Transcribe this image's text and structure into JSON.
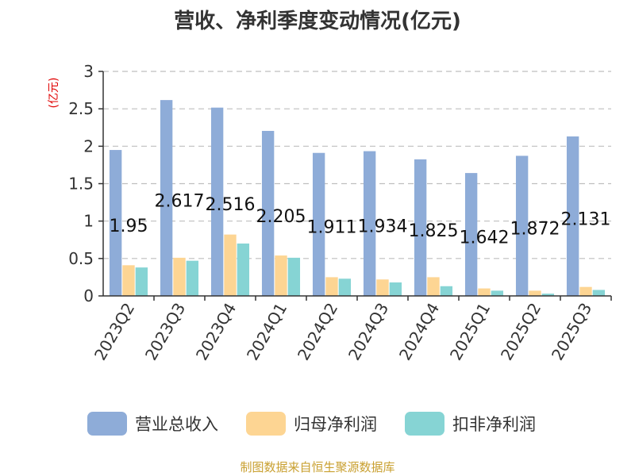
{
  "chart_data": {
    "type": "bar",
    "title": "营收、净利季度变动情况(亿元)",
    "unit_label": "(亿元)",
    "categories": [
      "2023Q2",
      "2023Q3",
      "2023Q4",
      "2024Q1",
      "2024Q2",
      "2024Q3",
      "2024Q4",
      "2025Q1",
      "2025Q2",
      "2025Q3"
    ],
    "series": [
      {
        "name": "营业总收入",
        "color": "#8eacd8",
        "values": [
          1.95,
          2.617,
          2.516,
          2.205,
          1.911,
          1.934,
          1.825,
          1.642,
          1.872,
          2.131
        ],
        "labels": [
          "1.95",
          "2.617",
          "2.516",
          "2.205",
          "1.911",
          "1.934",
          "1.825",
          "1.642",
          "1.872",
          "2.131"
        ]
      },
      {
        "name": "归母净利润",
        "color": "#fdd593",
        "values": [
          0.41,
          0.51,
          0.82,
          0.54,
          0.25,
          0.22,
          0.25,
          0.1,
          0.07,
          0.12
        ]
      },
      {
        "name": "扣非净利润",
        "color": "#86d4d4",
        "values": [
          0.38,
          0.47,
          0.7,
          0.51,
          0.23,
          0.18,
          0.13,
          0.07,
          0.03,
          0.08
        ]
      }
    ],
    "ylim": [
      0,
      3
    ],
    "yticks": [
      "0",
      "0.5",
      "1",
      "1.5",
      "2",
      "2.5",
      "3"
    ],
    "ytick_values": [
      0,
      0.5,
      1,
      1.5,
      2,
      2.5,
      3
    ],
    "grid": true,
    "legend_position": "bottom"
  },
  "source": "制图数据来自恒生聚源数据库"
}
